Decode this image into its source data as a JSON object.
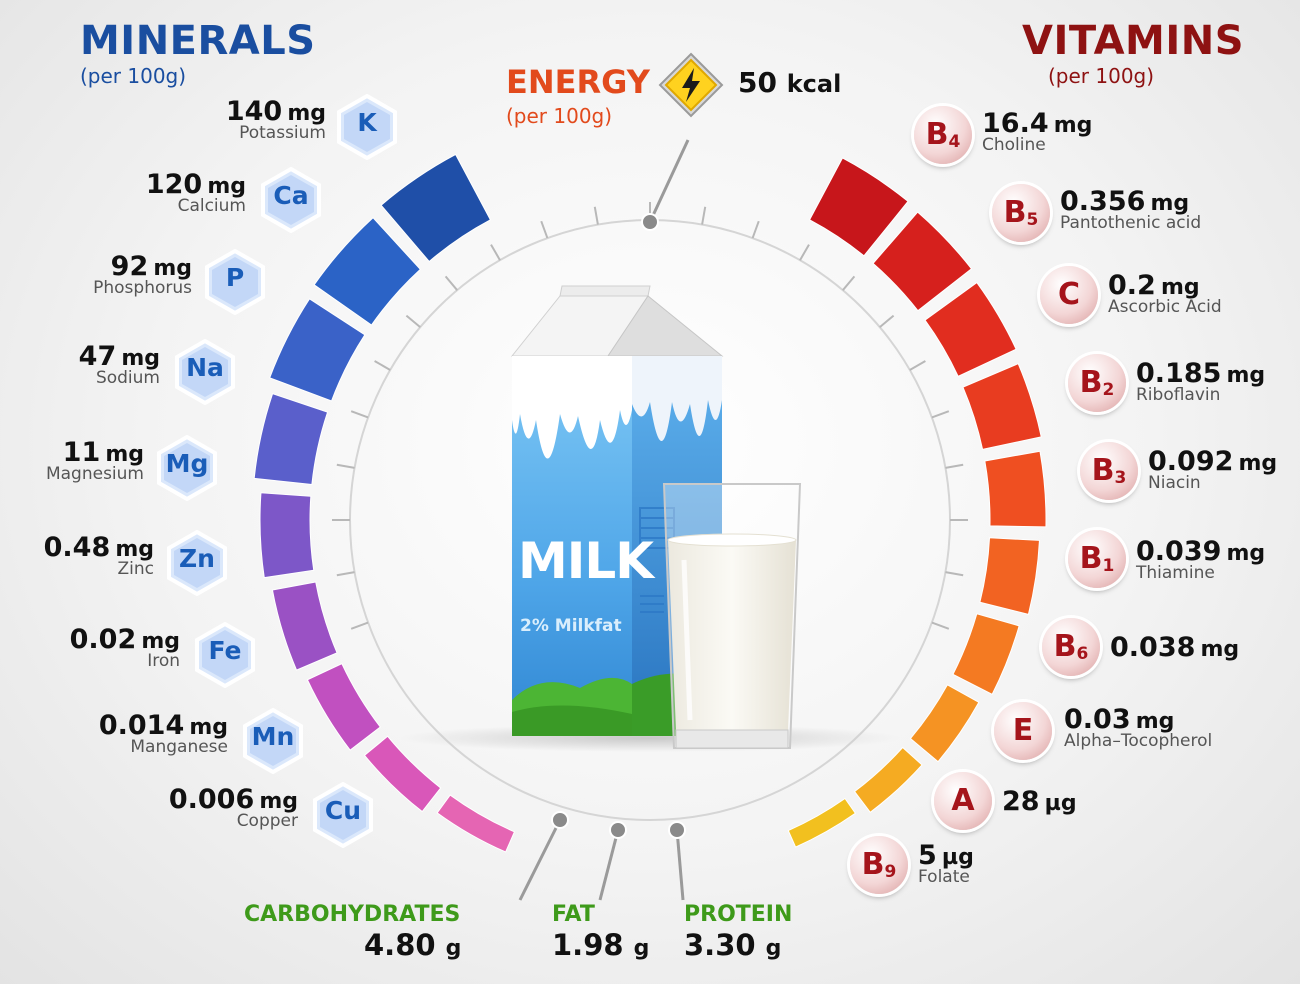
{
  "minerals": {
    "title": "MINERALS",
    "subtitle": "(per 100g)",
    "items": [
      {
        "symbol": "K",
        "value": "140",
        "unit": "mg",
        "name": "Potassium"
      },
      {
        "symbol": "Ca",
        "value": "120",
        "unit": "mg",
        "name": "Calcium"
      },
      {
        "symbol": "P",
        "value": "92",
        "unit": "mg",
        "name": "Phosphorus"
      },
      {
        "symbol": "Na",
        "value": "47",
        "unit": "mg",
        "name": "Sodium"
      },
      {
        "symbol": "Mg",
        "value": "11",
        "unit": "mg",
        "name": "Magnesium"
      },
      {
        "symbol": "Zn",
        "value": "0.48",
        "unit": "mg",
        "name": "Zinc"
      },
      {
        "symbol": "Fe",
        "value": "0.02",
        "unit": "mg",
        "name": "Iron"
      },
      {
        "symbol": "Mn",
        "value": "0.014",
        "unit": "mg",
        "name": "Manganese"
      },
      {
        "symbol": "Cu",
        "value": "0.006",
        "unit": "mg",
        "name": "Copper"
      }
    ],
    "colors": [
      "#1f4fa8",
      "#2b63c6",
      "#3a62c8",
      "#5a5fcb",
      "#7d57c8",
      "#9a51c4",
      "#c150c0",
      "#d957b9",
      "#e565b3"
    ]
  },
  "vitamins": {
    "title": "VITAMINS",
    "subtitle": "(per 100g)",
    "items": [
      {
        "letter": "B",
        "sub": "4",
        "value": "16.4",
        "unit": "mg",
        "name": "Choline"
      },
      {
        "letter": "B",
        "sub": "5",
        "value": "0.356",
        "unit": "mg",
        "name": "Pantothenic acid"
      },
      {
        "letter": "C",
        "sub": "",
        "value": "0.2",
        "unit": "mg",
        "name": "Ascorbic Acid"
      },
      {
        "letter": "B",
        "sub": "2",
        "value": "0.185",
        "unit": "mg",
        "name": "Riboflavin"
      },
      {
        "letter": "B",
        "sub": "3",
        "value": "0.092",
        "unit": "mg",
        "name": "Niacin"
      },
      {
        "letter": "B",
        "sub": "1",
        "value": "0.039",
        "unit": "mg",
        "name": "Thiamine"
      },
      {
        "letter": "B",
        "sub": "6",
        "value": "0.038",
        "unit": "mg",
        "name": ""
      },
      {
        "letter": "E",
        "sub": "",
        "value": "0.03",
        "unit": "mg",
        "name": "Alpha–Tocopherol"
      },
      {
        "letter": "A",
        "sub": "",
        "value": "28",
        "unit": "µg",
        "name": ""
      },
      {
        "letter": "B",
        "sub": "9",
        "value": "5",
        "unit": "µg",
        "name": "Folate"
      }
    ],
    "colors": [
      "#c7161b",
      "#d6201d",
      "#e12d1f",
      "#e83c20",
      "#ef4f21",
      "#f26322",
      "#f47a22",
      "#f59323",
      "#f5ab22",
      "#f2c01f"
    ]
  },
  "energy": {
    "label": "ENERGY",
    "subtitle": "(per 100g)",
    "value": "50",
    "unit": "kcal",
    "icon": "lightning-icon",
    "color": "#e24a1c"
  },
  "macros": [
    {
      "label": "CARBOHYDRATES",
      "value": "4.80",
      "unit": "g"
    },
    {
      "label": "FAT",
      "value": "1.98",
      "unit": "g"
    },
    {
      "label": "PROTEIN",
      "value": "3.30",
      "unit": "g"
    }
  ],
  "product": {
    "name": "MILK",
    "variant": "2% Milkfat"
  }
}
